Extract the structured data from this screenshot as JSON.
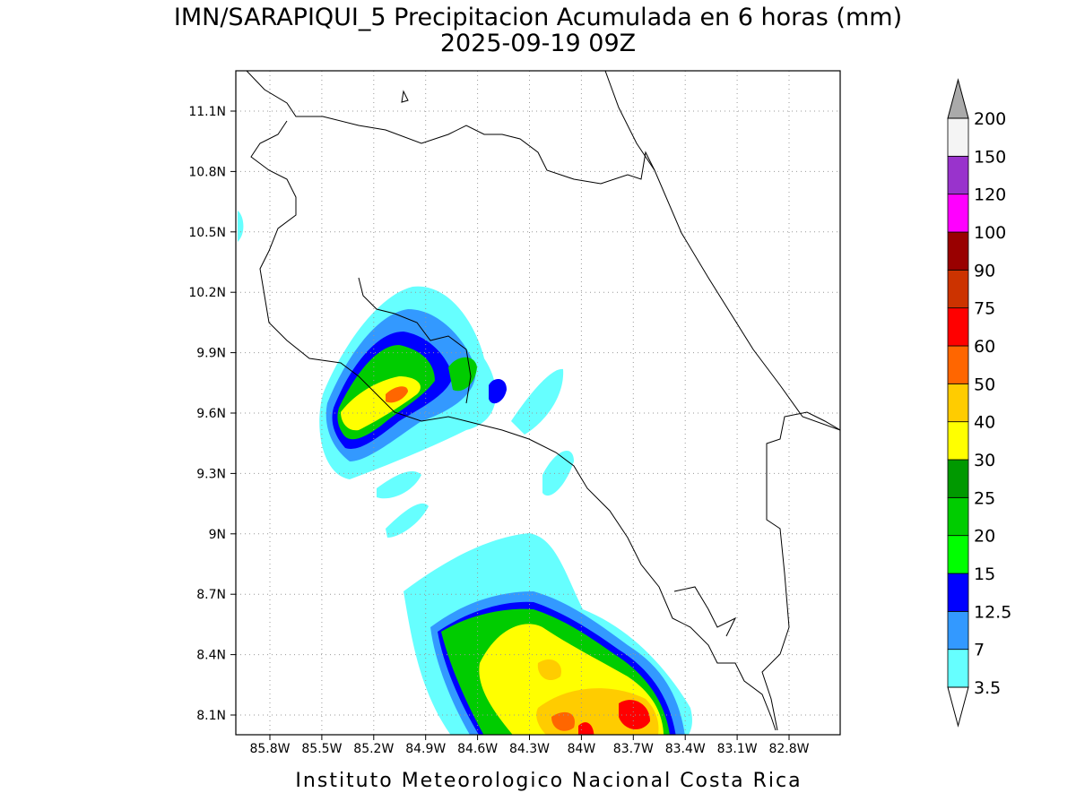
{
  "title": "IMN/SARAPIQUI_5 Precipitacion Acumulada en 6 horas (mm)",
  "subtitle": "2025-09-19 09Z",
  "footer": "Instituto Meteorologico Nacional Costa Rica",
  "lon_labels": [
    "85.8W",
    "85.5W",
    "85.2W",
    "84.9W",
    "84.6W",
    "84.3W",
    "84W",
    "83.7W",
    "83.4W",
    "83.1W",
    "82.8W"
  ],
  "lat_labels": [
    "11.1N",
    "10.8N",
    "10.5N",
    "10.2N",
    "9.9N",
    "9.6N",
    "9.3N",
    "9N",
    "8.7N",
    "8.4N",
    "8.1N"
  ],
  "colorbar": {
    "levels": [
      "3.5",
      "7",
      "12.5",
      "15",
      "20",
      "25",
      "30",
      "40",
      "50",
      "60",
      "75",
      "90",
      "100",
      "120",
      "150",
      "200"
    ],
    "colors": [
      "#66ffff",
      "#3399ff",
      "#0000ff",
      "#00ff00",
      "#00cc00",
      "#009900",
      "#ffff00",
      "#ffcc00",
      "#ff6600",
      "#ff0000",
      "#cc3300",
      "#990000",
      "#ff00ff",
      "#9933cc",
      "#f4f4f4"
    ],
    "below_color": "#ffffff",
    "above_color": "#aaaaaa"
  }
}
